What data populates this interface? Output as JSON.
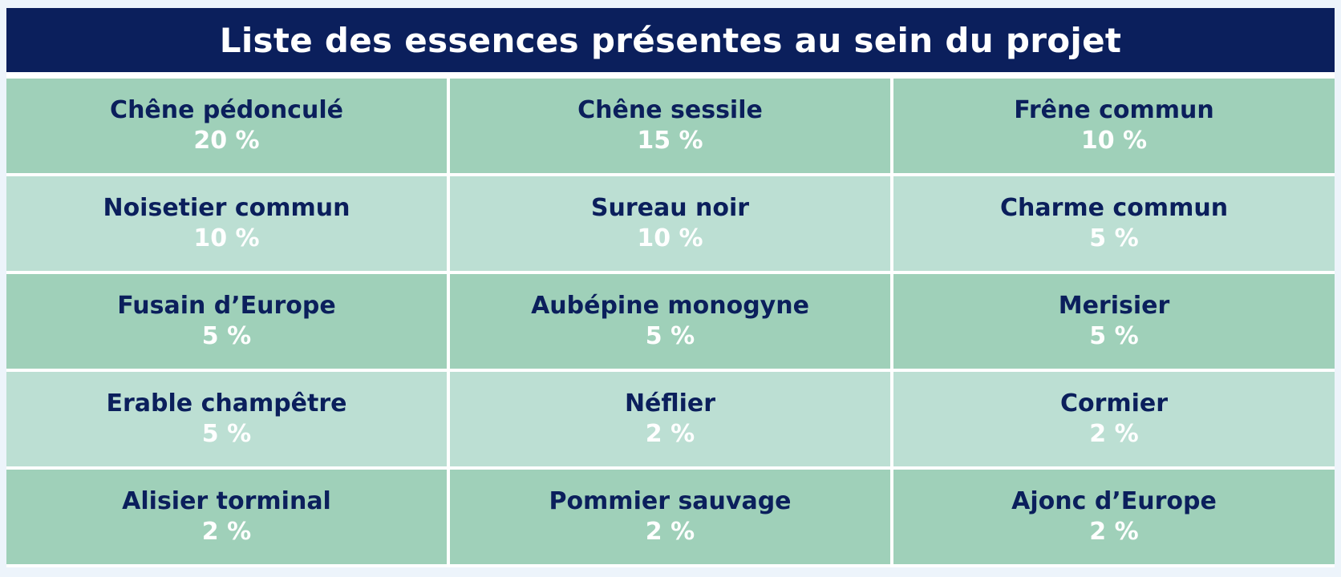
{
  "title": "Liste des essences présentes au sein du projet",
  "colors": {
    "header_bg": "#0b1f5c",
    "row_dark": "#9fd0b9",
    "row_light": "#bcdfd3",
    "name_text": "#0b1f5c",
    "percent_text": "#ffffff"
  },
  "species": [
    {
      "name": "Chêne pédonculé",
      "percent": "20 %"
    },
    {
      "name": "Chêne sessile",
      "percent": "15 %"
    },
    {
      "name": "Frêne commun",
      "percent": "10 %"
    },
    {
      "name": "Noisetier commun",
      "percent": "10 %"
    },
    {
      "name": "Sureau noir",
      "percent": "10 %"
    },
    {
      "name": "Charme commun",
      "percent": "5 %"
    },
    {
      "name": "Fusain d’Europe",
      "percent": "5 %"
    },
    {
      "name": "Aubépine monogyne",
      "percent": "5 %"
    },
    {
      "name": "Merisier",
      "percent": "5 %"
    },
    {
      "name": "Erable champêtre",
      "percent": "5 %"
    },
    {
      "name": "Néflier",
      "percent": "2 %"
    },
    {
      "name": "Cormier",
      "percent": "2 %"
    },
    {
      "name": "Alisier torminal",
      "percent": "2 %"
    },
    {
      "name": "Pommier sauvage",
      "percent": "2 %"
    },
    {
      "name": "Ajonc d’Europe",
      "percent": "2 %"
    }
  ]
}
